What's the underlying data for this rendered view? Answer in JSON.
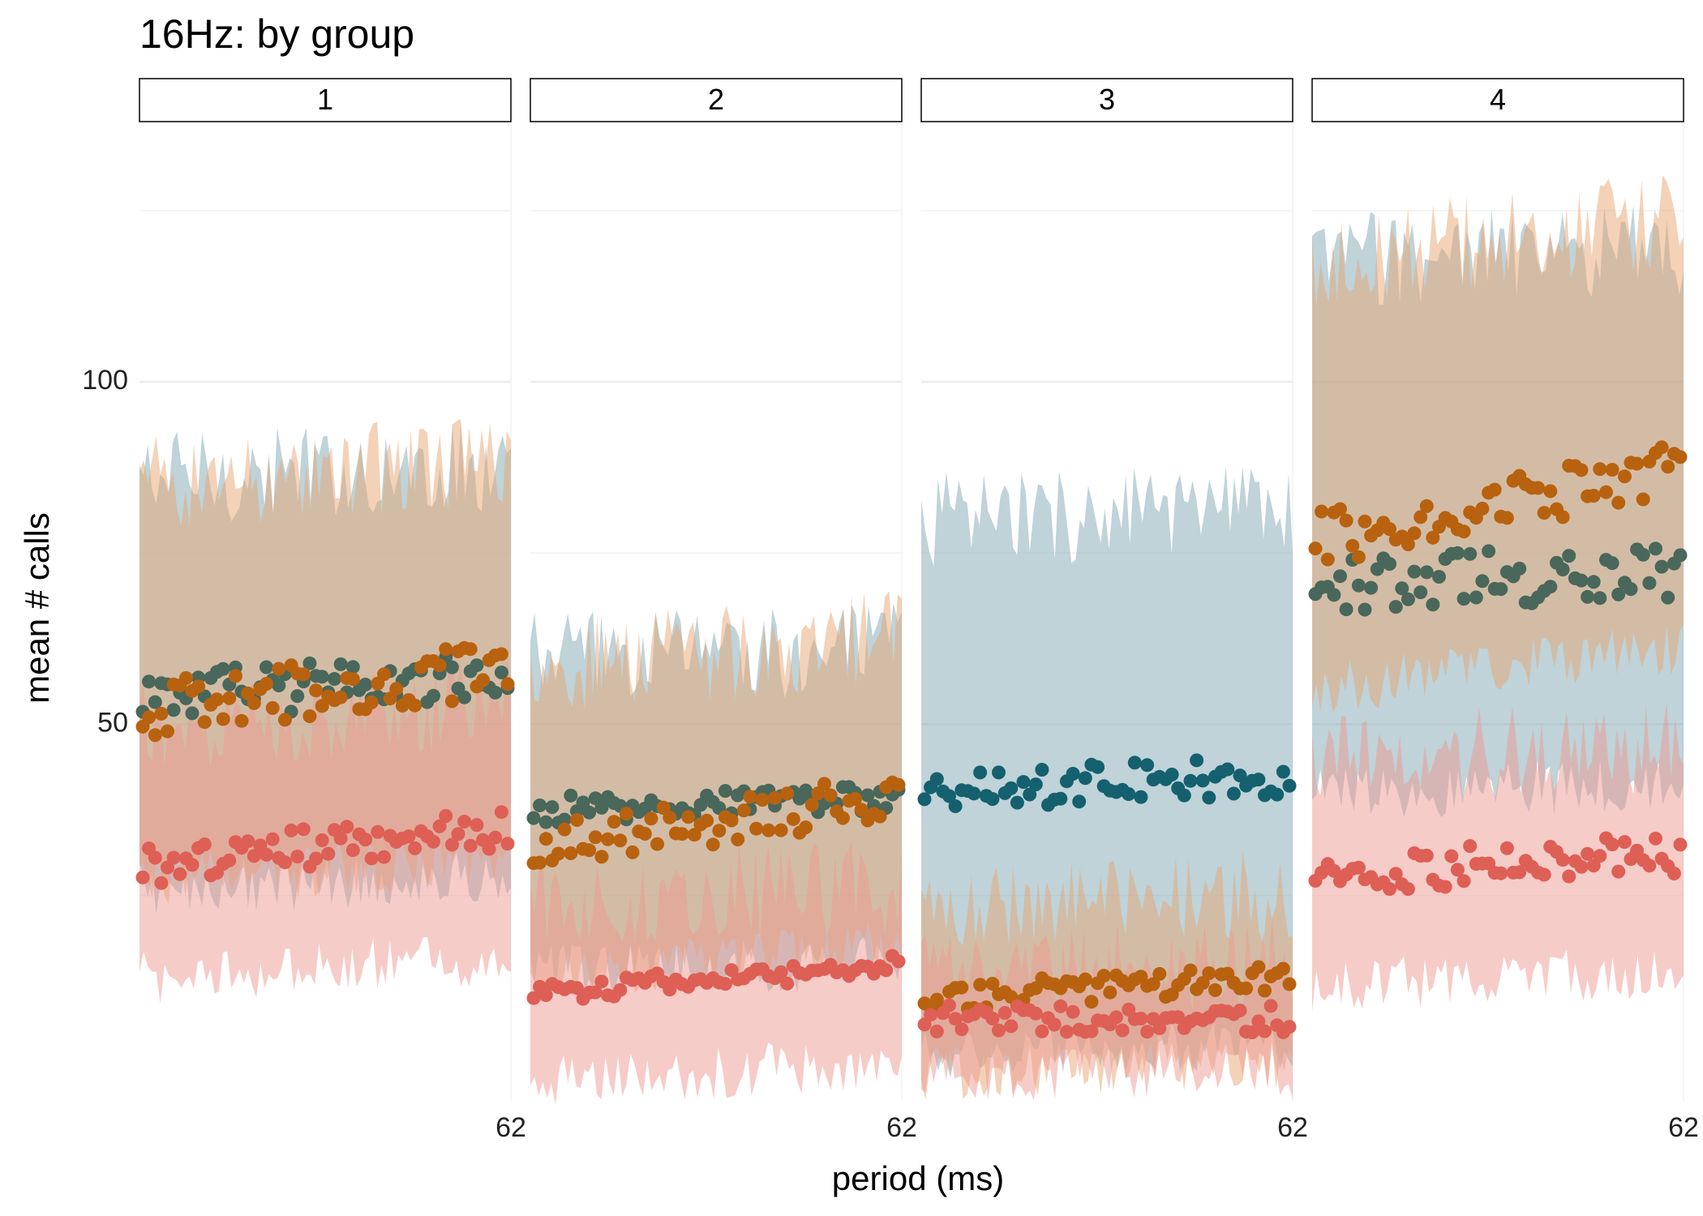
{
  "chart_data": {
    "type": "scatter",
    "title": "16Hz: by group",
    "xlabel": "period (ms)",
    "ylabel": "mean # calls",
    "x_tick_labels": [
      "62",
      "62",
      "62",
      "62"
    ],
    "y_tick_labels": [
      "50",
      "100"
    ],
    "y_ticks": [
      50,
      100
    ],
    "ylim": [
      -5,
      138
    ],
    "grid": true,
    "legend": "none",
    "facets": [
      {
        "label": "1",
        "series": [
          {
            "color": "#49675a",
            "mean": 55,
            "trend": 3,
            "noise": 3.5,
            "low": 26,
            "high": 86
          },
          {
            "color": "#b8620f",
            "mean": 54,
            "trend": 6,
            "noise": 4,
            "low": 27,
            "high": 85
          },
          {
            "color": "#de5f55",
            "mean": 31,
            "trend": 5,
            "noise": 3,
            "low": 13,
            "high": 50
          }
        ]
      },
      {
        "label": "2",
        "series": [
          {
            "color": "#49675a",
            "mean": 38,
            "trend": 2,
            "noise": 2,
            "low": 14,
            "high": 60
          },
          {
            "color": "#b8620f",
            "mean": 34,
            "trend": 8,
            "noise": 3.5,
            "low": 13,
            "high": 58
          },
          {
            "color": "#de5f55",
            "mean": 12,
            "trend": 4,
            "noise": 1.5,
            "low": -2,
            "high": 24
          }
        ]
      },
      {
        "label": "3",
        "series": [
          {
            "color": "#15606e",
            "mean": 41,
            "trend": 2,
            "noise": 3,
            "low": 2,
            "high": 80
          },
          {
            "color": "#b8620f",
            "mean": 11,
            "trend": 3,
            "noise": 2,
            "low": -1,
            "high": 23
          },
          {
            "color": "#de5f55",
            "mean": 7,
            "trend": 0,
            "noise": 2,
            "low": -1,
            "high": 15
          }
        ]
      },
      {
        "label": "4",
        "series": [
          {
            "color": "#49675a",
            "mean": 71,
            "trend": 2,
            "noise": 4,
            "low": 40,
            "high": 118
          },
          {
            "color": "#b8620f",
            "mean": 80,
            "trend": 10,
            "noise": 4,
            "low": 55,
            "high": 118
          },
          {
            "color": "#de5f55",
            "mean": 29,
            "trend": 3,
            "noise": 3,
            "low": 12,
            "high": 45
          }
        ]
      }
    ]
  }
}
